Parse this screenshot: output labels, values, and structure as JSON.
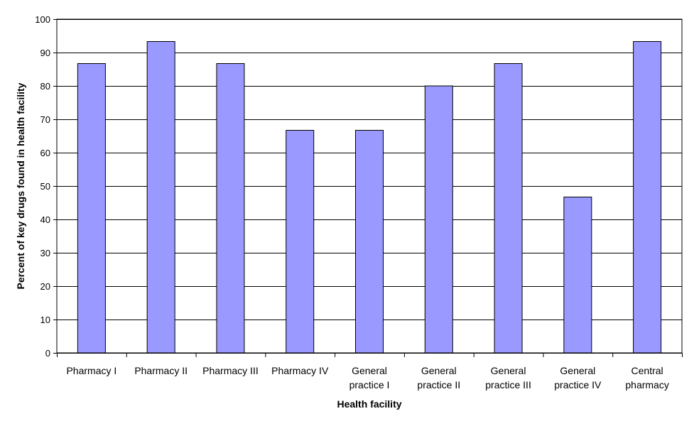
{
  "chart_data": {
    "type": "bar",
    "title": "",
    "xlabel": "Health facility",
    "ylabel": "Percent of key drugs found in health facility",
    "ylim": [
      0,
      100
    ],
    "yticks": [
      0,
      10,
      20,
      30,
      40,
      50,
      60,
      70,
      80,
      90,
      100
    ],
    "grid": true,
    "categories": [
      [
        "Pharmacy I"
      ],
      [
        "Pharmacy II"
      ],
      [
        "Pharmacy III"
      ],
      [
        "Pharmacy IV"
      ],
      [
        "General",
        "practice I"
      ],
      [
        "General",
        "practice II"
      ],
      [
        "General",
        "practice III"
      ],
      [
        "General",
        "practice IV"
      ],
      [
        "Central",
        "pharmacy"
      ]
    ],
    "values": [
      86.7,
      93.3,
      86.7,
      66.7,
      66.7,
      80.0,
      86.7,
      46.7,
      93.3
    ],
    "colors": {
      "bar_fill": "#9999ff",
      "bar_stroke": "#000000",
      "grid": "#000000",
      "background": "#ffffff"
    }
  }
}
